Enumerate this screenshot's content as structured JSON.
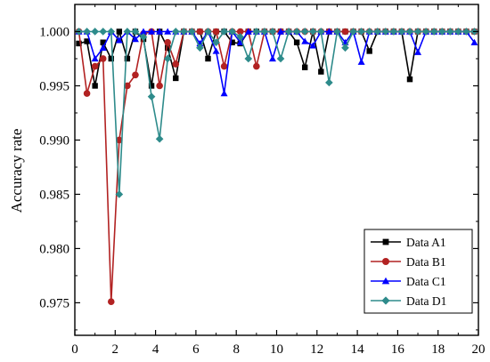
{
  "chart_data": {
    "type": "line",
    "title": "",
    "xlabel": "",
    "ylabel": "Accuracy rate",
    "xlim": [
      0,
      20
    ],
    "ylim": [
      0.972,
      1.0025
    ],
    "x_ticks": [
      0,
      2,
      4,
      6,
      8,
      10,
      12,
      14,
      16,
      18,
      20
    ],
    "y_ticks": [
      0.975,
      0.98,
      0.985,
      0.99,
      0.995,
      1.0
    ],
    "x_tick_labels": [
      "0",
      "2",
      "4",
      "6",
      "8",
      "10",
      "12",
      "14",
      "16",
      "18",
      "20"
    ],
    "y_tick_labels": [
      "0.975",
      "0.980",
      "0.985",
      "0.990",
      "0.995",
      "1.000"
    ],
    "grid": false,
    "legend_position": "bottom-right",
    "series": [
      {
        "name": "Data A1",
        "color": "#000000",
        "marker": "square",
        "points": [
          [
            0.2,
            0.9989
          ],
          [
            0.6,
            0.9991
          ],
          [
            1.0,
            0.995
          ],
          [
            1.4,
            0.999
          ],
          [
            1.8,
            0.9975
          ],
          [
            2.2,
            1.0
          ],
          [
            2.6,
            0.9975
          ],
          [
            3.0,
            1.0
          ],
          [
            3.4,
            0.9993
          ],
          [
            3.8,
            0.995
          ],
          [
            4.2,
            1.0
          ],
          [
            4.6,
            0.9985
          ],
          [
            5.0,
            0.9957
          ],
          [
            5.4,
            1.0
          ],
          [
            5.8,
            1.0
          ],
          [
            6.2,
            1.0
          ],
          [
            6.6,
            0.9975
          ],
          [
            7.0,
            1.0
          ],
          [
            7.4,
            1.0
          ],
          [
            7.8,
            0.999
          ],
          [
            8.2,
            0.9989
          ],
          [
            8.6,
            1.0
          ],
          [
            9.0,
            1.0
          ],
          [
            9.4,
            1.0
          ],
          [
            9.8,
            1.0
          ],
          [
            10.2,
            1.0
          ],
          [
            10.6,
            1.0
          ],
          [
            11.0,
            0.999
          ],
          [
            11.4,
            0.9967
          ],
          [
            11.8,
            1.0
          ],
          [
            12.2,
            0.9963
          ],
          [
            12.6,
            1.0
          ],
          [
            13.0,
            1.0
          ],
          [
            13.4,
            1.0
          ],
          [
            13.8,
            1.0
          ],
          [
            14.2,
            1.0
          ],
          [
            14.6,
            0.9982
          ],
          [
            15.0,
            1.0
          ],
          [
            15.4,
            1.0
          ],
          [
            15.8,
            1.0
          ],
          [
            16.2,
            1.0
          ],
          [
            16.6,
            0.9956
          ],
          [
            17.0,
            1.0
          ],
          [
            17.4,
            1.0
          ],
          [
            17.8,
            1.0
          ],
          [
            18.2,
            1.0
          ],
          [
            18.6,
            1.0
          ],
          [
            19.0,
            1.0
          ],
          [
            19.4,
            1.0
          ],
          [
            19.8,
            1.0
          ]
        ]
      },
      {
        "name": "Data B1",
        "color": "#b22222",
        "marker": "circle",
        "points": [
          [
            0.2,
            1.0
          ],
          [
            0.6,
            0.9943
          ],
          [
            1.0,
            0.9968
          ],
          [
            1.4,
            0.9975
          ],
          [
            1.8,
            0.9751
          ],
          [
            2.2,
            0.99
          ],
          [
            2.6,
            0.995
          ],
          [
            3.0,
            0.996
          ],
          [
            3.4,
            0.9998
          ],
          [
            3.8,
            1.0
          ],
          [
            4.2,
            0.995
          ],
          [
            4.6,
            0.999
          ],
          [
            5.0,
            0.997
          ],
          [
            5.4,
            1.0
          ],
          [
            5.8,
            1.0
          ],
          [
            6.2,
            1.0
          ],
          [
            6.6,
            1.0
          ],
          [
            7.0,
            1.0
          ],
          [
            7.4,
            0.9968
          ],
          [
            7.8,
            1.0
          ],
          [
            8.2,
            1.0
          ],
          [
            8.6,
            1.0
          ],
          [
            9.0,
            0.9968
          ],
          [
            9.4,
            1.0
          ],
          [
            9.8,
            1.0
          ],
          [
            10.2,
            1.0
          ],
          [
            10.6,
            1.0
          ],
          [
            11.0,
            1.0
          ],
          [
            11.4,
            1.0
          ],
          [
            11.8,
            1.0
          ],
          [
            12.2,
            1.0
          ],
          [
            12.6,
            1.0
          ],
          [
            13.0,
            1.0
          ],
          [
            13.4,
            1.0
          ],
          [
            13.8,
            1.0
          ],
          [
            14.2,
            1.0
          ],
          [
            14.6,
            1.0
          ],
          [
            15.0,
            1.0
          ],
          [
            15.4,
            1.0
          ],
          [
            15.8,
            1.0
          ],
          [
            16.2,
            1.0
          ],
          [
            16.6,
            1.0
          ],
          [
            17.0,
            1.0
          ],
          [
            17.4,
            1.0
          ],
          [
            17.8,
            1.0
          ],
          [
            18.2,
            1.0
          ],
          [
            18.6,
            1.0
          ],
          [
            19.0,
            1.0
          ],
          [
            19.4,
            1.0
          ],
          [
            19.8,
            1.0
          ]
        ]
      },
      {
        "name": "Data C1",
        "color": "#0000ff",
        "marker": "triangle",
        "points": [
          [
            0.2,
            1.0
          ],
          [
            0.6,
            1.0
          ],
          [
            1.0,
            0.9975
          ],
          [
            1.4,
            0.9985
          ],
          [
            1.8,
            1.0
          ],
          [
            2.2,
            0.9992
          ],
          [
            2.6,
            1.0
          ],
          [
            3.0,
            0.9993
          ],
          [
            3.4,
            1.0
          ],
          [
            3.8,
            1.0
          ],
          [
            4.2,
            1.0
          ],
          [
            4.6,
            1.0
          ],
          [
            5.0,
            1.0
          ],
          [
            5.4,
            1.0
          ],
          [
            5.8,
            1.0
          ],
          [
            6.2,
            0.9989
          ],
          [
            6.6,
            1.0
          ],
          [
            7.0,
            0.9982
          ],
          [
            7.4,
            0.9943
          ],
          [
            7.8,
            1.0
          ],
          [
            8.2,
            0.999
          ],
          [
            8.6,
            1.0
          ],
          [
            9.0,
            1.0
          ],
          [
            9.4,
            1.0
          ],
          [
            9.8,
            0.9975
          ],
          [
            10.2,
            1.0
          ],
          [
            10.6,
            1.0
          ],
          [
            11.0,
            1.0
          ],
          [
            11.4,
            0.9991
          ],
          [
            11.8,
            0.9987
          ],
          [
            12.2,
            1.0
          ],
          [
            12.6,
            1.0
          ],
          [
            13.0,
            1.0
          ],
          [
            13.4,
            0.999
          ],
          [
            13.8,
            1.0
          ],
          [
            14.2,
            0.9972
          ],
          [
            14.6,
            1.0
          ],
          [
            15.0,
            1.0
          ],
          [
            15.4,
            1.0
          ],
          [
            15.8,
            1.0
          ],
          [
            16.2,
            1.0
          ],
          [
            16.6,
            1.0
          ],
          [
            17.0,
            0.9981
          ],
          [
            17.4,
            1.0
          ],
          [
            17.8,
            1.0
          ],
          [
            18.2,
            1.0
          ],
          [
            18.6,
            1.0
          ],
          [
            19.0,
            1.0
          ],
          [
            19.4,
            1.0
          ],
          [
            19.8,
            0.999
          ]
        ]
      },
      {
        "name": "Data D1",
        "color": "#2e8b8b",
        "marker": "diamond",
        "points": [
          [
            0.2,
            1.0
          ],
          [
            0.6,
            1.0
          ],
          [
            1.0,
            1.0
          ],
          [
            1.4,
            1.0
          ],
          [
            1.8,
            1.0
          ],
          [
            2.2,
            0.985
          ],
          [
            2.6,
            1.0
          ],
          [
            3.0,
            1.0
          ],
          [
            3.4,
            0.9995
          ],
          [
            3.8,
            0.994
          ],
          [
            4.2,
            0.9901
          ],
          [
            4.6,
            0.9975
          ],
          [
            5.0,
            1.0
          ],
          [
            5.4,
            1.0
          ],
          [
            5.8,
            1.0
          ],
          [
            6.2,
            0.9985
          ],
          [
            6.6,
            1.0
          ],
          [
            7.0,
            0.999
          ],
          [
            7.4,
            1.0
          ],
          [
            7.8,
            1.0
          ],
          [
            8.2,
            0.9995
          ],
          [
            8.6,
            0.9975
          ],
          [
            9.0,
            1.0
          ],
          [
            9.4,
            1.0
          ],
          [
            9.8,
            1.0
          ],
          [
            10.2,
            0.9975
          ],
          [
            10.6,
            1.0
          ],
          [
            11.0,
            1.0
          ],
          [
            11.4,
            1.0
          ],
          [
            11.8,
            1.0
          ],
          [
            12.2,
            1.0
          ],
          [
            12.6,
            0.9953
          ],
          [
            13.0,
            1.0
          ],
          [
            13.4,
            0.9985
          ],
          [
            13.8,
            1.0
          ],
          [
            14.2,
            1.0
          ],
          [
            14.6,
            1.0
          ],
          [
            15.0,
            1.0
          ],
          [
            15.4,
            1.0
          ],
          [
            15.8,
            1.0
          ],
          [
            16.2,
            1.0
          ],
          [
            16.6,
            1.0
          ],
          [
            17.0,
            1.0
          ],
          [
            17.4,
            1.0
          ],
          [
            17.8,
            1.0
          ],
          [
            18.2,
            1.0
          ],
          [
            18.6,
            1.0
          ],
          [
            19.0,
            1.0
          ],
          [
            19.4,
            1.0
          ],
          [
            19.8,
            1.0
          ]
        ]
      }
    ]
  }
}
